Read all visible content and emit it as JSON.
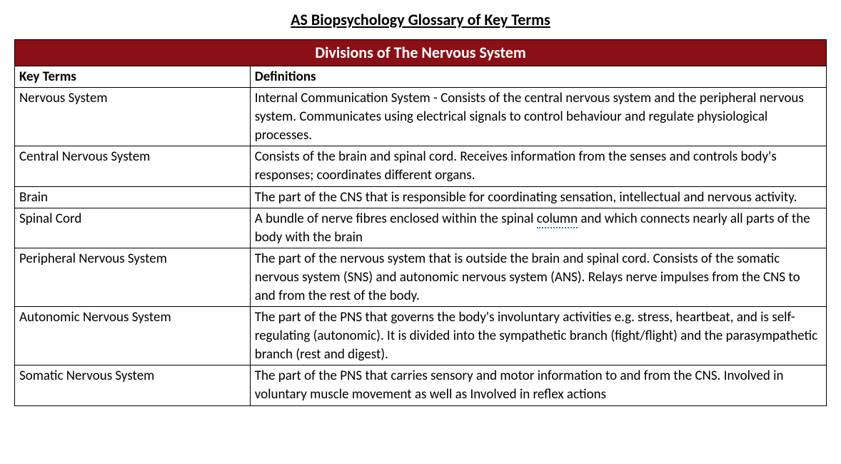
{
  "page_title": "AS Biopsychology Glossary of Key Terms",
  "table": {
    "section_title": "Divisions of The Nervous System",
    "section_header_bg": "#8a0f16",
    "section_header_fg": "#ffffff",
    "columns": [
      "Key Terms",
      "Definitions"
    ],
    "rows": [
      {
        "term": "Nervous System",
        "definition": "Internal Communication System - Consists of the central nervous system and the peripheral nervous system. Communicates using electrical signals to control behaviour and regulate physiological processes."
      },
      {
        "term": "Central Nervous System",
        "definition": "Consists of the brain and spinal cord. Receives information from the senses and controls body's responses; coordinates different organs."
      },
      {
        "term": "Brain",
        "definition": "The part of the CNS that is responsible for coordinating sensation, intellectual and nervous activity."
      },
      {
        "term": "Spinal Cord",
        "definition_pre": "A bundle of nerve fibres enclosed within the spinal ",
        "definition_mark": "column",
        "definition_post": " and which connects nearly all parts of the body with the brain"
      },
      {
        "term": "Peripheral Nervous System",
        "definition": "The part of the nervous system that is outside the brain and spinal cord. Consists of the somatic nervous system (SNS) and autonomic nervous system (ANS). Relays nerve impulses from the CNS to and from the rest of the body."
      },
      {
        "term": "Autonomic Nervous System",
        "definition": "The part of the PNS that governs the body's involuntary activities e.g. stress, heartbeat, and is self-regulating (autonomic). It is divided into the sympathetic branch (fight/flight) and the parasympathetic branch (rest and digest)."
      },
      {
        "term": "Somatic Nervous System",
        "definition": "The part of the PNS that carries sensory and motor information to and from the CNS. Involved in voluntary muscle movement as well as Involved in reflex actions"
      }
    ]
  }
}
